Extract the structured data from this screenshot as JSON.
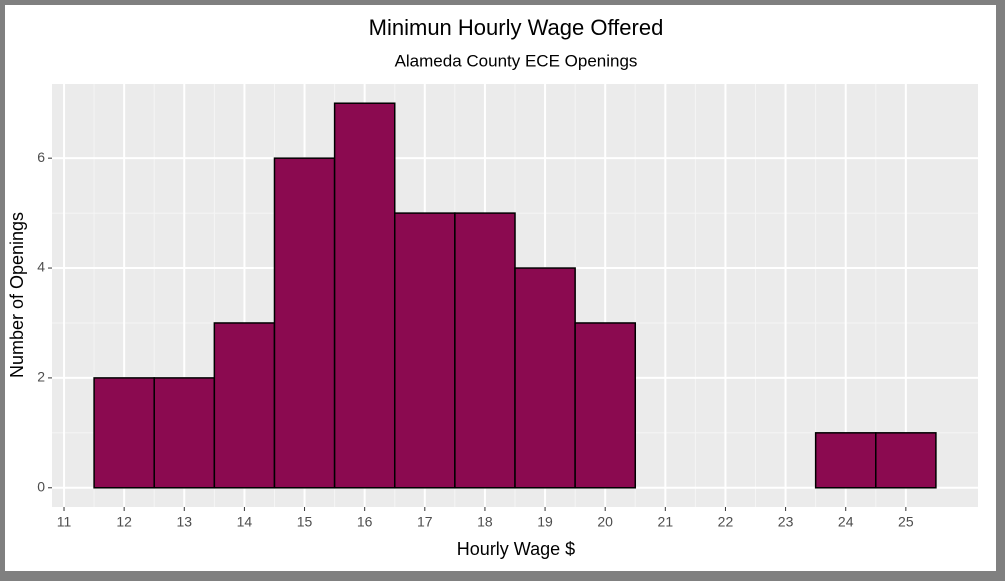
{
  "chart_data": {
    "type": "histogram",
    "title": "Minimun Hourly Wage Offered",
    "subtitle": "Alameda County ECE Openings",
    "xlabel": "Hourly Wage $",
    "ylabel": "Number of Openings",
    "bins": [
      11.5,
      12.5,
      13.5,
      14.5,
      15.5,
      16.5,
      17.5,
      18.5,
      19.5,
      20.5,
      21.5,
      22.5,
      23.5,
      24.5,
      25.5
    ],
    "values": [
      2,
      2,
      3,
      6,
      7,
      5,
      5,
      4,
      3,
      0,
      0,
      0,
      1,
      1
    ],
    "color": "#8b0a50",
    "xlim": [
      10.8,
      26.2
    ],
    "xticks": [
      11,
      12,
      13,
      14,
      15,
      16,
      17,
      18,
      19,
      20,
      21,
      22,
      23,
      24,
      25
    ],
    "ylim": [
      -0.35,
      7.35
    ],
    "yticks": [
      0,
      2,
      4,
      6
    ],
    "grid": true
  }
}
